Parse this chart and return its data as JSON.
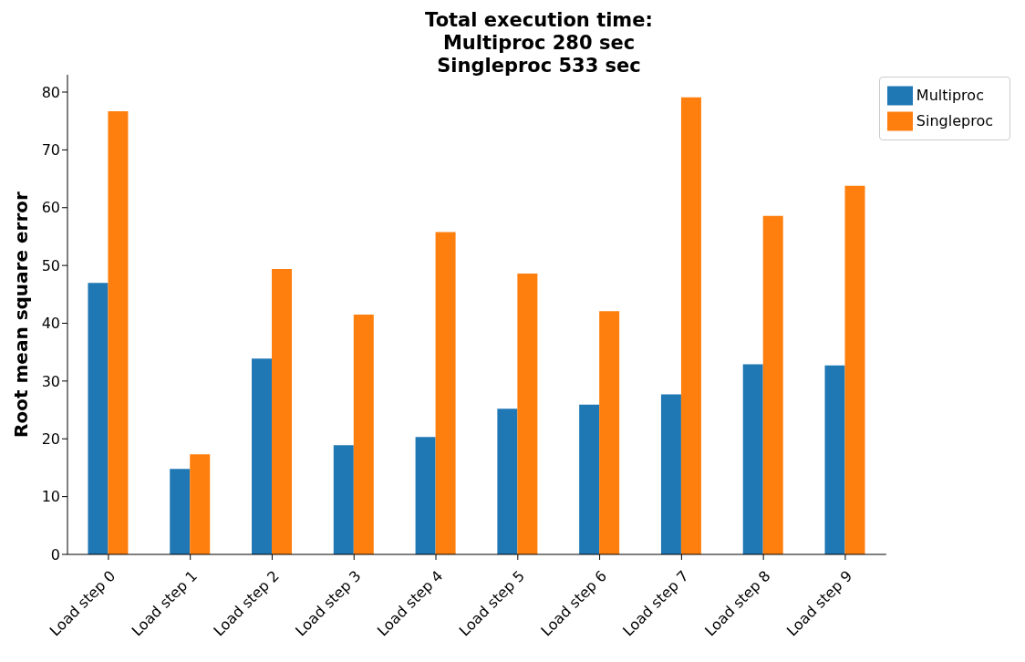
{
  "chart_data": {
    "type": "bar",
    "title": "Total execution time:\nMultiproc 280 sec\nSingleproc 533 sec",
    "ylabel": "Root mean square error",
    "categories": [
      "Load step 0",
      "Load step 1",
      "Load step 2",
      "Load step 3",
      "Load step 4",
      "Load step 5",
      "Load step 6",
      "Load step 7",
      "Load step 8",
      "Load step 9"
    ],
    "series": [
      {
        "name": "Multiproc",
        "color": "#1f77b4",
        "values": [
          47.0,
          14.8,
          33.9,
          18.9,
          20.3,
          25.2,
          25.9,
          27.7,
          32.9,
          32.7
        ]
      },
      {
        "name": "Singleproc",
        "color": "#ff7f0e",
        "values": [
          76.7,
          17.3,
          49.4,
          41.5,
          55.8,
          48.6,
          42.1,
          79.1,
          58.6,
          63.8
        ]
      }
    ],
    "ylim": [
      0,
      83
    ],
    "yticks": [
      0,
      10,
      20,
      30,
      40,
      50,
      60,
      70,
      80
    ],
    "grid": false,
    "legend": "top right"
  }
}
